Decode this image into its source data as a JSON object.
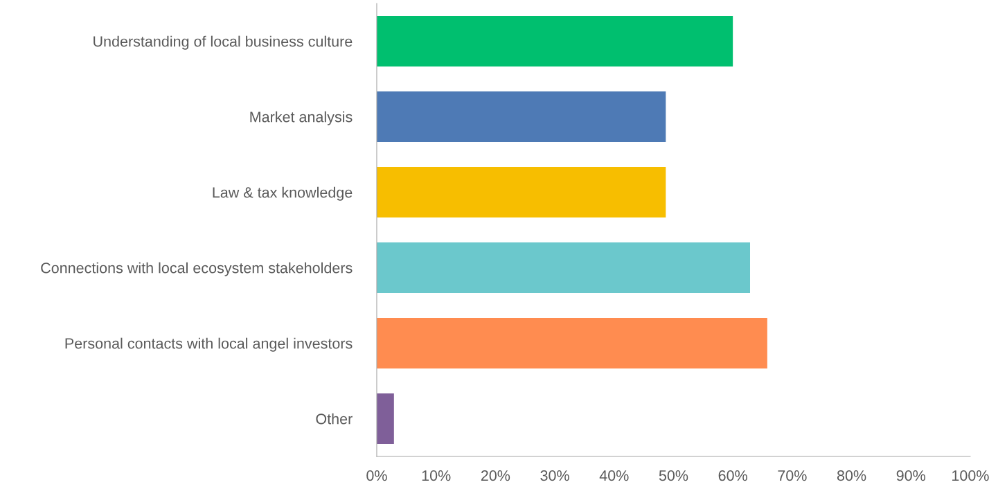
{
  "chart_data": {
    "type": "bar",
    "orientation": "horizontal",
    "categories": [
      "Understanding of local business culture",
      "Market analysis",
      "Law & tax knowledge",
      "Connections with local ecosystem stakeholders",
      "Personal contacts with local angel investors",
      "Other"
    ],
    "values": [
      60,
      48.7,
      48.7,
      62.9,
      65.8,
      2.9
    ],
    "colors": [
      "#00bf6f",
      "#4e7ab5",
      "#f7be00",
      "#6bc8cc",
      "#ff8c50",
      "#7f5f99"
    ],
    "xlim": [
      0,
      100
    ],
    "xticks": [
      {
        "value": 0,
        "label": "0%"
      },
      {
        "value": 10,
        "label": "10%"
      },
      {
        "value": 20,
        "label": "20%"
      },
      {
        "value": 30,
        "label": "30%"
      },
      {
        "value": 40,
        "label": "40%"
      },
      {
        "value": 50,
        "label": "50%"
      },
      {
        "value": 60,
        "label": "60%"
      },
      {
        "value": 70,
        "label": "70%"
      },
      {
        "value": 80,
        "label": "80%"
      },
      {
        "value": 90,
        "label": "90%"
      },
      {
        "value": 100,
        "label": "100%"
      }
    ],
    "grid": false,
    "legend": false
  }
}
